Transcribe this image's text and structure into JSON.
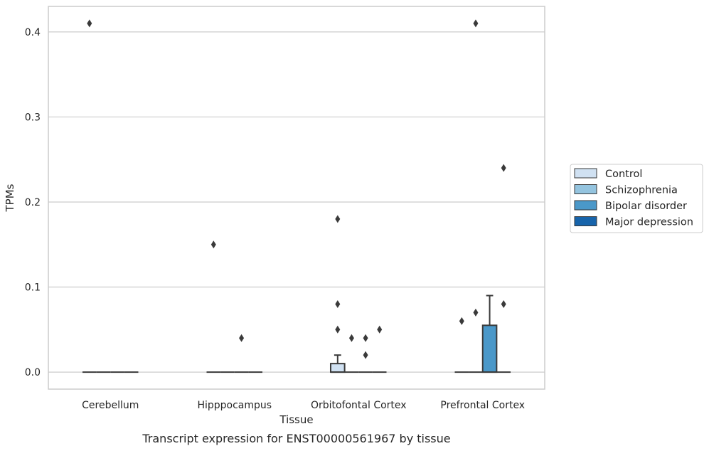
{
  "chart_data": {
    "type": "box",
    "xlabel": "Tissue",
    "ylabel": "TPMs",
    "caption": "Transcript expression for ENST00000561967 by tissue",
    "ylim": [
      -0.02,
      0.43
    ],
    "yticks": [
      "0.0",
      "0.1",
      "0.2",
      "0.3",
      "0.4"
    ],
    "ytick_values": [
      0.0,
      0.1,
      0.2,
      0.3,
      0.4
    ],
    "grid": "horizontal",
    "legend_position": "right",
    "categories": [
      "Cerebellum",
      "Hipppocampus",
      "Orbitofontal Cortex",
      "Prefrontal Cortex"
    ],
    "series": [
      {
        "name": "Control",
        "color": "#d0e1f2",
        "boxes": [
          {
            "q1": 0,
            "median": 0,
            "q3": 0,
            "whisker_low": 0,
            "whisker_high": 0,
            "outliers": [
              0.41
            ]
          },
          {
            "q1": 0,
            "median": 0,
            "q3": 0,
            "whisker_low": 0,
            "whisker_high": 0,
            "outliers": [
              0.15
            ]
          },
          {
            "q1": 0,
            "median": 0,
            "q3": 0.01,
            "whisker_low": 0,
            "whisker_high": 0.02,
            "outliers": [
              0.18,
              0.08,
              0.05
            ]
          },
          {
            "q1": 0,
            "median": 0,
            "q3": 0,
            "whisker_low": 0,
            "whisker_high": 0,
            "outliers": [
              0.06
            ]
          }
        ]
      },
      {
        "name": "Schizophrenia",
        "color": "#94c4df",
        "boxes": [
          {
            "q1": 0,
            "median": 0,
            "q3": 0,
            "whisker_low": 0,
            "whisker_high": 0,
            "outliers": []
          },
          {
            "q1": 0,
            "median": 0,
            "q3": 0,
            "whisker_low": 0,
            "whisker_high": 0,
            "outliers": []
          },
          {
            "q1": 0,
            "median": 0,
            "q3": 0,
            "whisker_low": 0,
            "whisker_high": 0,
            "outliers": [
              0.04
            ]
          },
          {
            "q1": 0,
            "median": 0,
            "q3": 0,
            "whisker_low": 0,
            "whisker_high": 0,
            "outliers": [
              0.41,
              0.07
            ]
          }
        ]
      },
      {
        "name": "Bipolar disorder",
        "color": "#4a98c9",
        "boxes": [
          {
            "q1": 0,
            "median": 0,
            "q3": 0,
            "whisker_low": 0,
            "whisker_high": 0,
            "outliers": []
          },
          {
            "q1": 0,
            "median": 0,
            "q3": 0,
            "whisker_low": 0,
            "whisker_high": 0,
            "outliers": [
              0.04
            ]
          },
          {
            "q1": 0,
            "median": 0,
            "q3": 0,
            "whisker_low": 0,
            "whisker_high": 0,
            "outliers": [
              0.04,
              0.02
            ]
          },
          {
            "q1": 0,
            "median": 0,
            "q3": 0.055,
            "whisker_low": 0,
            "whisker_high": 0.09,
            "outliers": []
          }
        ]
      },
      {
        "name": "Major depression",
        "color": "#1764ab",
        "boxes": [
          {
            "q1": 0,
            "median": 0,
            "q3": 0,
            "whisker_low": 0,
            "whisker_high": 0,
            "outliers": []
          },
          {
            "q1": 0,
            "median": 0,
            "q3": 0,
            "whisker_low": 0,
            "whisker_high": 0,
            "outliers": []
          },
          {
            "q1": 0,
            "median": 0,
            "q3": 0,
            "whisker_low": 0,
            "whisker_high": 0,
            "outliers": [
              0.05
            ]
          },
          {
            "q1": 0,
            "median": 0,
            "q3": 0,
            "whisker_low": 0,
            "whisker_high": 0,
            "outliers": [
              0.24,
              0.08
            ]
          }
        ]
      }
    ]
  }
}
